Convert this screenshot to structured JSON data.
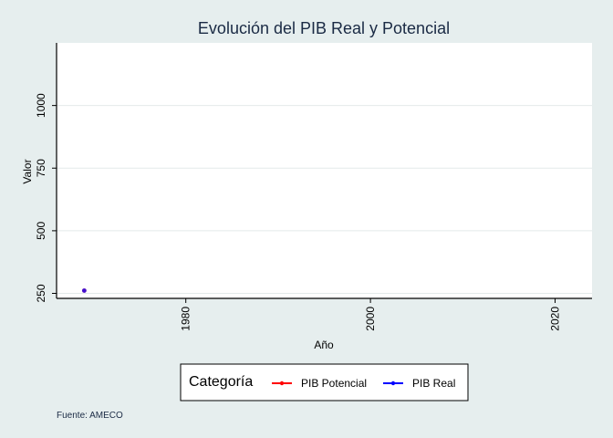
{
  "chart_data": {
    "type": "line",
    "title": "Evolución del PIB Real y Potencial",
    "xlabel": "Año",
    "ylabel": "Valor",
    "xlim": [
      1966,
      2024
    ],
    "ylim": [
      230,
      1250
    ],
    "x_ticks": [
      1980,
      2000,
      2020
    ],
    "y_ticks": [
      250,
      500,
      750,
      1000
    ],
    "grid": "horizontal",
    "series": [
      {
        "name": "PIB Potencial",
        "color": "#ff0000",
        "points": [
          {
            "x": 1969,
            "y": 261
          }
        ]
      },
      {
        "name": "PIB Real",
        "color": "#0000ff",
        "points": [
          {
            "x": 1969,
            "y": 261
          }
        ]
      }
    ],
    "legend": {
      "title": "Categoría",
      "position": "bottom",
      "entries": [
        {
          "label": "PIB Potencial",
          "color": "#ff0000"
        },
        {
          "label": "PIB Real",
          "color": "#0000ff"
        }
      ]
    },
    "caption": "Fuente: AMECO"
  }
}
